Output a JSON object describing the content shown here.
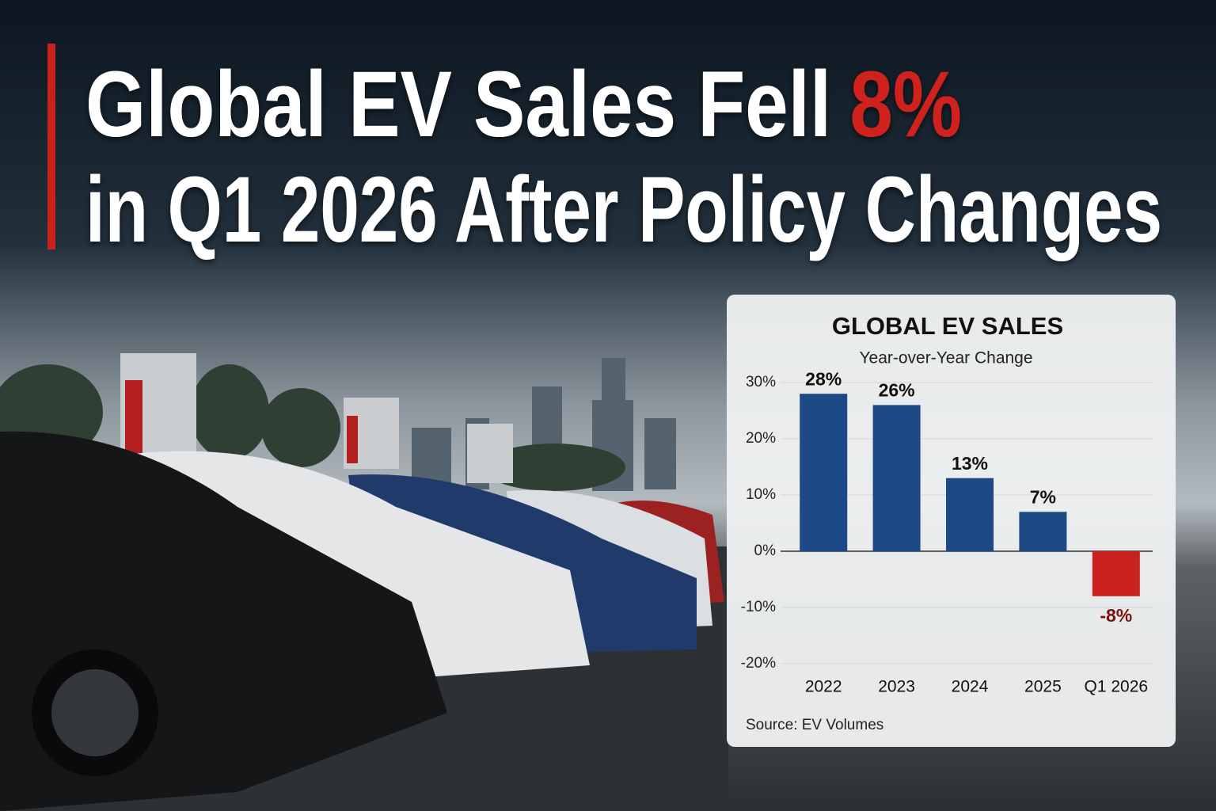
{
  "headline": {
    "parts": [
      "Global EV Sales Fell",
      "8%",
      "in Q1 2026 After Policy Changes"
    ]
  },
  "chart_data": {
    "type": "bar",
    "title": "GLOBAL EV SALES",
    "subtitle": "Year-over-Year Change",
    "categories": [
      "2022",
      "2023",
      "2024",
      "2025",
      "Q1 2026"
    ],
    "values": [
      28,
      26,
      13,
      7,
      -8
    ],
    "value_labels": [
      "28%",
      "26%",
      "13%",
      "7%",
      "-8%"
    ],
    "colors": [
      "#1d4a86",
      "#1d4a86",
      "#1d4a86",
      "#1d4a86",
      "#c8211e"
    ],
    "ylim": [
      -20,
      30
    ],
    "yticks": [
      {
        "value": -20,
        "label": "-20%"
      },
      {
        "value": -10,
        "label": "-10%"
      },
      {
        "value": 0,
        "label": "0%"
      },
      {
        "value": 10,
        "label": "10%"
      },
      {
        "value": 20,
        "label": "20%"
      },
      {
        "value": 30,
        "label": "30%"
      }
    ],
    "grid": true,
    "source": "Source: EV Volumes"
  }
}
